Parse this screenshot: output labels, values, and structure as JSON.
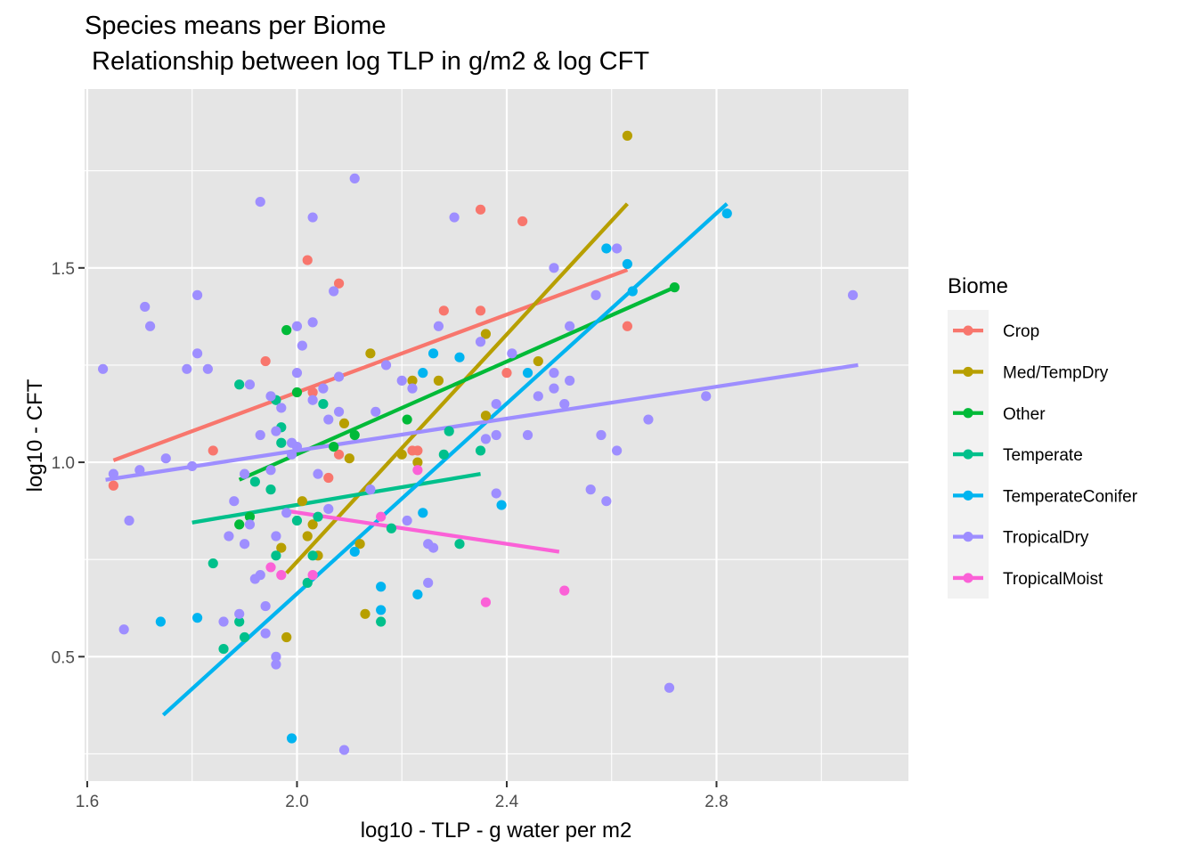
{
  "chart_data": {
    "type": "scatter",
    "title": "Species means per Biome",
    "subtitle": " Relationship between log TLP in g/m2 & log CFT",
    "xlabel": "log10 - TLP - g water per m2",
    "ylabel": "log10 - CFT",
    "xlim": [
      1.595,
      3.166
    ],
    "ylim": [
      0.18,
      1.96
    ],
    "x_ticks": [
      1.6,
      2.0,
      2.4,
      2.8
    ],
    "x_tick_labels": [
      "1.6",
      "2.0",
      "2.4",
      "2.8"
    ],
    "y_ticks": [
      0.5,
      1.0,
      1.5
    ],
    "y_tick_labels": [
      "0.5",
      "1.0",
      "1.5"
    ],
    "grid": true,
    "background": "#e5e5e5",
    "legend": {
      "title": "Biome",
      "position": "right"
    },
    "series": [
      {
        "name": "Crop",
        "color": "#f8766d",
        "fit": [
          [
            1.65,
            1.005
          ],
          [
            2.63,
            1.495
          ]
        ],
        "points": [
          [
            1.65,
            0.94
          ],
          [
            1.84,
            1.03
          ],
          [
            1.94,
            1.26
          ],
          [
            2.02,
            1.52
          ],
          [
            2.03,
            1.18
          ],
          [
            2.06,
            0.96
          ],
          [
            2.08,
            1.46
          ],
          [
            2.08,
            1.02
          ],
          [
            2.22,
            1.03
          ],
          [
            2.23,
            1.03
          ],
          [
            2.28,
            1.39
          ],
          [
            2.35,
            1.39
          ],
          [
            2.35,
            1.65
          ],
          [
            2.4,
            1.23
          ],
          [
            2.43,
            1.62
          ],
          [
            2.63,
            1.35
          ]
        ]
      },
      {
        "name": "Med/TempDry",
        "color": "#b79f00",
        "fit": [
          [
            1.98,
            0.715
          ],
          [
            2.63,
            1.665
          ]
        ],
        "points": [
          [
            1.97,
            0.78
          ],
          [
            1.98,
            0.55
          ],
          [
            2.01,
            0.9
          ],
          [
            2.02,
            0.81
          ],
          [
            2.03,
            0.84
          ],
          [
            2.04,
            0.76
          ],
          [
            2.09,
            1.1
          ],
          [
            2.1,
            1.01
          ],
          [
            2.12,
            0.79
          ],
          [
            2.13,
            0.61
          ],
          [
            2.14,
            1.28
          ],
          [
            2.2,
            1.02
          ],
          [
            2.22,
            1.21
          ],
          [
            2.23,
            1.0
          ],
          [
            2.27,
            1.21
          ],
          [
            2.36,
            1.33
          ],
          [
            2.36,
            1.12
          ],
          [
            2.46,
            1.26
          ],
          [
            2.63,
            1.84
          ]
        ]
      },
      {
        "name": "Other",
        "color": "#00ba38",
        "fit": [
          [
            1.89,
            0.955
          ],
          [
            2.72,
            1.45
          ]
        ],
        "points": [
          [
            1.89,
            0.84
          ],
          [
            1.91,
            0.86
          ],
          [
            1.98,
            1.34
          ],
          [
            2.0,
            1.18
          ],
          [
            2.07,
            1.04
          ],
          [
            2.11,
            1.07
          ],
          [
            2.21,
            1.11
          ],
          [
            2.72,
            1.45
          ]
        ]
      },
      {
        "name": "Temperate",
        "color": "#00c08b",
        "fit": [
          [
            1.8,
            0.845
          ],
          [
            2.35,
            0.97
          ]
        ],
        "points": [
          [
            1.84,
            0.74
          ],
          [
            1.86,
            0.52
          ],
          [
            1.89,
            0.59
          ],
          [
            1.89,
            1.2
          ],
          [
            1.9,
            0.55
          ],
          [
            1.92,
            0.95
          ],
          [
            1.95,
            0.93
          ],
          [
            1.96,
            1.16
          ],
          [
            1.96,
            0.76
          ],
          [
            1.97,
            1.09
          ],
          [
            1.97,
            1.05
          ],
          [
            2.0,
            0.85
          ],
          [
            2.02,
            0.69
          ],
          [
            2.03,
            0.76
          ],
          [
            2.04,
            0.86
          ],
          [
            2.05,
            1.15
          ],
          [
            2.16,
            0.59
          ],
          [
            2.18,
            0.83
          ],
          [
            2.28,
            1.02
          ],
          [
            2.29,
            1.08
          ],
          [
            2.31,
            0.79
          ],
          [
            2.35,
            1.03
          ]
        ]
      },
      {
        "name": "TemperateConifer",
        "color": "#00b4f0",
        "fit": [
          [
            1.745,
            0.35
          ],
          [
            2.82,
            1.665
          ]
        ],
        "points": [
          [
            1.74,
            0.59
          ],
          [
            1.81,
            0.6
          ],
          [
            1.99,
            0.29
          ],
          [
            2.11,
            0.77
          ],
          [
            2.16,
            0.62
          ],
          [
            2.16,
            0.68
          ],
          [
            2.23,
            0.66
          ],
          [
            2.24,
            0.87
          ],
          [
            2.24,
            1.23
          ],
          [
            2.26,
            1.28
          ],
          [
            2.31,
            1.27
          ],
          [
            2.39,
            0.89
          ],
          [
            2.44,
            1.23
          ],
          [
            2.59,
            1.55
          ],
          [
            2.63,
            1.51
          ],
          [
            2.64,
            1.44
          ],
          [
            2.82,
            1.64
          ]
        ]
      },
      {
        "name": "TropicalDry",
        "color": "#9e8eff",
        "fit": [
          [
            1.635,
            0.955
          ],
          [
            3.07,
            1.25
          ]
        ],
        "points": [
          [
            1.63,
            1.24
          ],
          [
            1.65,
            0.97
          ],
          [
            1.67,
            0.57
          ],
          [
            1.68,
            0.85
          ],
          [
            1.7,
            0.98
          ],
          [
            1.71,
            1.4
          ],
          [
            1.72,
            1.35
          ],
          [
            1.75,
            1.01
          ],
          [
            1.79,
            1.24
          ],
          [
            1.8,
            0.99
          ],
          [
            1.81,
            1.43
          ],
          [
            1.81,
            1.28
          ],
          [
            1.83,
            1.24
          ],
          [
            1.86,
            0.59
          ],
          [
            1.87,
            0.81
          ],
          [
            1.88,
            0.9
          ],
          [
            1.89,
            0.61
          ],
          [
            1.9,
            0.79
          ],
          [
            1.9,
            0.97
          ],
          [
            1.91,
            0.84
          ],
          [
            1.91,
            1.2
          ],
          [
            1.92,
            0.7
          ],
          [
            1.93,
            1.67
          ],
          [
            1.93,
            1.07
          ],
          [
            1.93,
            0.71
          ],
          [
            1.94,
            0.56
          ],
          [
            1.94,
            0.63
          ],
          [
            1.95,
            1.17
          ],
          [
            1.95,
            0.98
          ],
          [
            1.96,
            0.48
          ],
          [
            1.96,
            0.5
          ],
          [
            1.96,
            1.08
          ],
          [
            1.96,
            0.81
          ],
          [
            1.97,
            1.14
          ],
          [
            1.98,
            0.87
          ],
          [
            1.99,
            1.05
          ],
          [
            1.99,
            1.02
          ],
          [
            2.0,
            1.23
          ],
          [
            2.0,
            1.35
          ],
          [
            2.0,
            1.04
          ],
          [
            2.01,
            1.3
          ],
          [
            2.03,
            1.36
          ],
          [
            2.03,
            1.16
          ],
          [
            2.03,
            1.63
          ],
          [
            2.04,
            0.97
          ],
          [
            2.05,
            1.19
          ],
          [
            2.06,
            1.11
          ],
          [
            2.06,
            0.88
          ],
          [
            2.07,
            1.44
          ],
          [
            2.08,
            1.22
          ],
          [
            2.08,
            1.13
          ],
          [
            2.09,
            0.26
          ],
          [
            2.11,
            1.73
          ],
          [
            2.14,
            0.93
          ],
          [
            2.15,
            1.13
          ],
          [
            2.17,
            1.25
          ],
          [
            2.2,
            1.21
          ],
          [
            2.21,
            0.85
          ],
          [
            2.22,
            1.19
          ],
          [
            2.25,
            0.79
          ],
          [
            2.25,
            0.69
          ],
          [
            2.26,
            0.78
          ],
          [
            2.27,
            1.35
          ],
          [
            2.3,
            1.63
          ],
          [
            2.35,
            1.31
          ],
          [
            2.36,
            1.06
          ],
          [
            2.38,
            0.92
          ],
          [
            2.38,
            1.07
          ],
          [
            2.38,
            1.15
          ],
          [
            2.41,
            1.28
          ],
          [
            2.44,
            1.07
          ],
          [
            2.46,
            1.17
          ],
          [
            2.49,
            1.23
          ],
          [
            2.49,
            1.19
          ],
          [
            2.49,
            1.5
          ],
          [
            2.51,
            1.15
          ],
          [
            2.52,
            1.21
          ],
          [
            2.52,
            1.35
          ],
          [
            2.56,
            0.93
          ],
          [
            2.57,
            1.43
          ],
          [
            2.58,
            1.07
          ],
          [
            2.59,
            0.9
          ],
          [
            2.61,
            1.03
          ],
          [
            2.61,
            1.55
          ],
          [
            2.67,
            1.11
          ],
          [
            2.71,
            0.42
          ],
          [
            2.78,
            1.17
          ],
          [
            3.06,
            1.43
          ]
        ]
      },
      {
        "name": "TropicalMoist",
        "color": "#fb61d7",
        "fit": [
          [
            1.98,
            0.875
          ],
          [
            2.5,
            0.77
          ]
        ],
        "points": [
          [
            1.95,
            0.73
          ],
          [
            1.97,
            0.71
          ],
          [
            2.03,
            0.71
          ],
          [
            2.16,
            0.86
          ],
          [
            2.23,
            0.98
          ],
          [
            2.36,
            0.64
          ],
          [
            2.51,
            0.67
          ]
        ]
      }
    ]
  }
}
